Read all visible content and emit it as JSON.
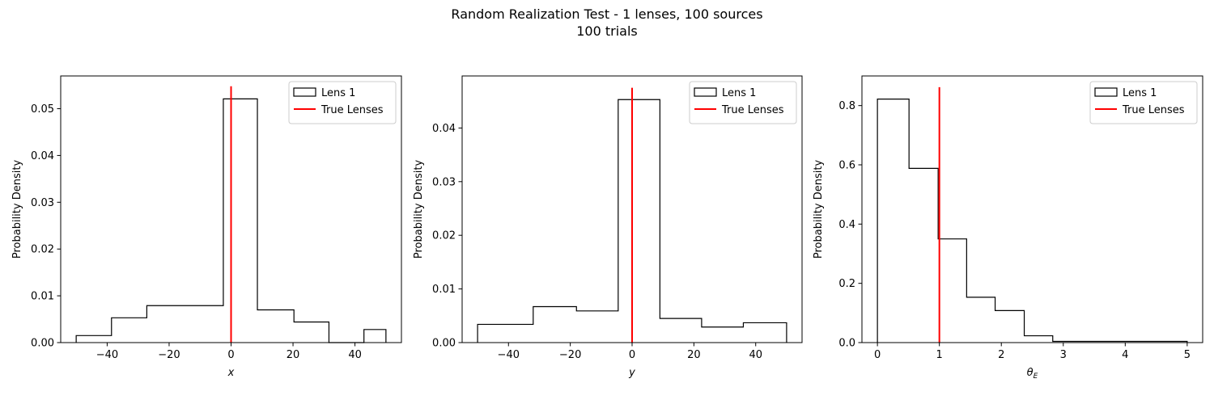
{
  "figure": {
    "title_line1": "Random Realization Test - 1 lenses, 100 sources",
    "title_line2": "100 trials"
  },
  "chart_data": [
    {
      "type": "histogram",
      "xlabel": "x",
      "xlabel_italic": true,
      "ylabel": "Probability Density",
      "xlim": [
        -55,
        55
      ],
      "ylim": [
        0,
        0.057
      ],
      "xticks": [
        -40,
        -20,
        0,
        20,
        40
      ],
      "xtick_labels": [
        "−40",
        "−20",
        "0",
        "20",
        "40"
      ],
      "yticks": [
        0.0,
        0.01,
        0.02,
        0.03,
        0.04,
        0.05
      ],
      "ytick_labels": [
        "0.00",
        "0.01",
        "0.02",
        "0.03",
        "0.04",
        "0.05"
      ],
      "bin_edges": [
        -50.0,
        -38.6,
        -27.2,
        -15.8,
        -2.5,
        8.5,
        20.3,
        31.6,
        42.9,
        50.0
      ],
      "densities": [
        0.0015,
        0.0053,
        0.0079,
        0.0079,
        0.0521,
        0.007,
        0.0044,
        0.0,
        0.0028
      ],
      "series_name": "Lens 1",
      "true_value": 0,
      "true_line_top": 0.0548,
      "true_name": "True Lenses",
      "grid": false,
      "legend": "upper right",
      "colors": {
        "hist": "#000000",
        "true": "#ff0000"
      }
    },
    {
      "type": "histogram",
      "xlabel": "y",
      "xlabel_italic": true,
      "ylabel": "Probability Density",
      "xlim": [
        -55,
        55
      ],
      "ylim": [
        0,
        0.0497
      ],
      "xticks": [
        -40,
        -20,
        0,
        20,
        40
      ],
      "xtick_labels": [
        "−40",
        "−20",
        "0",
        "20",
        "40"
      ],
      "yticks": [
        0.0,
        0.01,
        0.02,
        0.03,
        0.04
      ],
      "ytick_labels": [
        "0.00",
        "0.01",
        "0.02",
        "0.03",
        "0.04"
      ],
      "bin_edges": [
        -50.0,
        -32.0,
        -18.0,
        -4.5,
        9.0,
        22.5,
        36.0,
        50.0
      ],
      "densities": [
        0.0034,
        0.0067,
        0.0059,
        0.0453,
        0.0045,
        0.0029,
        0.0037
      ],
      "series_name": "Lens 1",
      "true_value": 0,
      "true_line_top": 0.0475,
      "true_name": "True Lenses",
      "grid": false,
      "legend": "upper right",
      "colors": {
        "hist": "#000000",
        "true": "#ff0000"
      }
    },
    {
      "type": "histogram",
      "xlabel": "θ_E",
      "xlabel_italic": true,
      "ylabel": "Probability Density",
      "xlim": [
        -0.25,
        5.25
      ],
      "ylim": [
        0,
        0.9
      ],
      "xticks": [
        0,
        1,
        2,
        3,
        4,
        5
      ],
      "xtick_labels": [
        "0",
        "1",
        "2",
        "3",
        "4",
        "5"
      ],
      "yticks": [
        0.0,
        0.2,
        0.4,
        0.6,
        0.8
      ],
      "ytick_labels": [
        "0.0",
        "0.2",
        "0.4",
        "0.6",
        "0.8"
      ],
      "bin_edges": [
        0.0,
        0.51,
        0.98,
        1.44,
        1.9,
        2.37,
        2.83,
        3.3,
        3.76,
        4.22,
        4.69,
        5.0
      ],
      "densities": [
        0.822,
        0.588,
        0.35,
        0.153,
        0.108,
        0.023,
        0.004,
        0.004,
        0.004,
        0.004,
        0.004
      ],
      "series_name": "Lens 1",
      "true_value": 1,
      "true_line_top": 0.862,
      "true_name": "True Lenses",
      "grid": false,
      "legend": "upper right",
      "colors": {
        "hist": "#000000",
        "true": "#ff0000"
      }
    }
  ]
}
